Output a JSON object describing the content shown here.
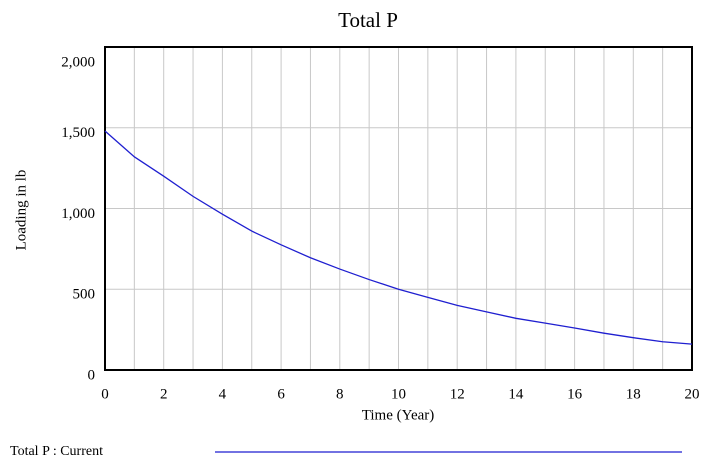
{
  "chart_data": {
    "type": "line",
    "title": "Total P",
    "xlabel": "Time (Year)",
    "ylabel": "Loading in lb",
    "x": [
      0,
      1,
      2,
      3,
      4,
      5,
      6,
      7,
      8,
      9,
      10,
      11,
      12,
      13,
      14,
      15,
      16,
      17,
      18,
      19,
      20
    ],
    "series": [
      {
        "name": "Total P : Current",
        "color": "#1f1fd0",
        "values": [
          1480,
          1320,
          1200,
          1075,
          965,
          860,
          775,
          695,
          625,
          560,
          500,
          450,
          400,
          360,
          320,
          290,
          260,
          228,
          200,
          175,
          160
        ]
      }
    ],
    "xlim": [
      0,
      20
    ],
    "xticks": [
      0,
      2,
      4,
      6,
      8,
      10,
      12,
      14,
      16,
      18,
      20
    ],
    "ylim": [
      0,
      2000
    ],
    "yticks": [
      0,
      500,
      {
        "value": 1000,
        "label": "1,000"
      },
      {
        "value": 1500,
        "label": "1,500"
      },
      {
        "value": 2000,
        "label": "2,000"
      }
    ],
    "grid": true
  }
}
